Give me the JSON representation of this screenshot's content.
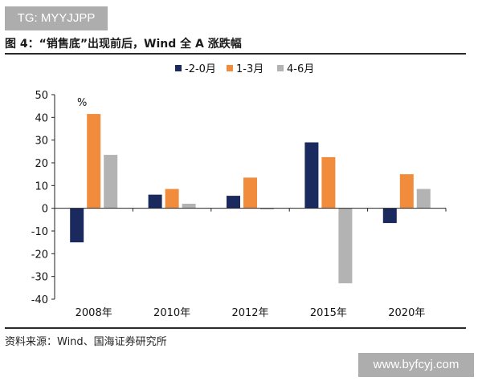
{
  "watermark_top": "TG: MYYJJPP",
  "figure_title": "图 4：“销售底”出现前后，Wind 全 A 涨跌幅",
  "source_note": "资料来源：Wind、国海证券研究所",
  "watermark_bottom": "www.byfcyj.com",
  "chart_data": {
    "type": "bar",
    "title": "",
    "xlabel": "",
    "ylabel": "%",
    "ylim": [
      -40,
      50
    ],
    "yticks": [
      -40,
      -30,
      -20,
      -10,
      0,
      10,
      20,
      30,
      40,
      50
    ],
    "grid": false,
    "legend_position": "top",
    "categories": [
      "2008年",
      "2010年",
      "2012年",
      "2015年",
      "2020年"
    ],
    "series": [
      {
        "name": "-2-0月",
        "color": "#1b2a5e",
        "values": [
          -15,
          6,
          5.5,
          29,
          -6.5
        ]
      },
      {
        "name": "1-3月",
        "color": "#f08c3c",
        "values": [
          41.5,
          8.5,
          13.5,
          22.5,
          15
        ]
      },
      {
        "name": "4-6月",
        "color": "#b3b3b3",
        "values": [
          23.5,
          2,
          -0.5,
          -33,
          8.5
        ]
      }
    ]
  }
}
